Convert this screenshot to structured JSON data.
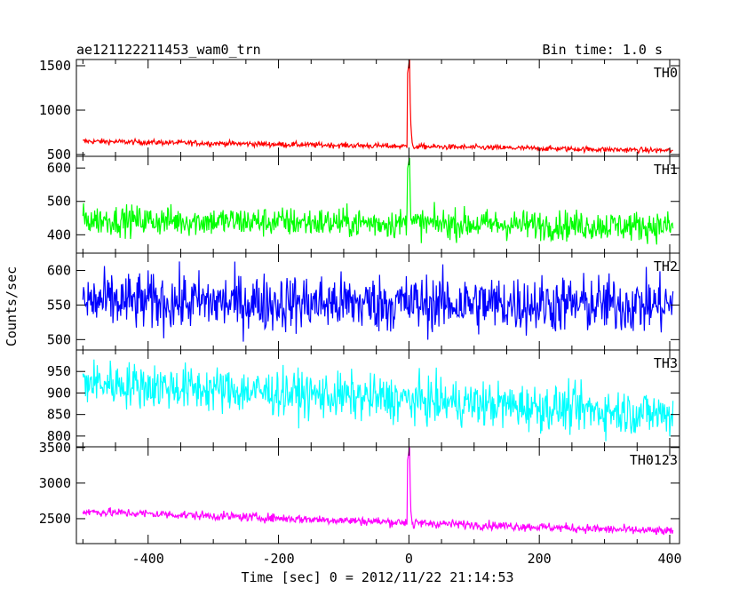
{
  "chart_data": {
    "type": "line",
    "title": "ae121122211453_wam0_trn",
    "subtitle": "Bin time: 1.0 s",
    "xlabel": "Time [sec] 0 = 2012/11/22 21:14:53",
    "ylabel": "Counts/sec",
    "xlim": [
      -510,
      415
    ],
    "x_ticks": [
      -400,
      -200,
      0,
      200,
      400
    ],
    "panels": [
      {
        "name": "TH0",
        "color": "#ff0000",
        "ylim": [
          480,
          1570
        ],
        "y_ticks": [
          500,
          1000,
          1500
        ],
        "baseline_start": 650,
        "baseline_end": 545,
        "noise": 22,
        "burst_peak": 1570,
        "burst_decay": 80
      },
      {
        "name": "TH1",
        "color": "#00ff00",
        "ylim": [
          345,
          635
        ],
        "y_ticks": [
          400,
          500,
          600
        ],
        "baseline_start": 445,
        "baseline_end": 425,
        "noise": 32,
        "burst_peak": 630,
        "burst_decay": 30
      },
      {
        "name": "TH2",
        "color": "#0000ff",
        "ylim": [
          485,
          625
        ],
        "y_ticks": [
          500,
          550,
          600
        ],
        "baseline_start": 555,
        "baseline_end": 550,
        "noise": 30,
        "burst_peak": 555,
        "burst_decay": 0
      },
      {
        "name": "TH3",
        "color": "#00ffff",
        "ylim": [
          775,
          1000
        ],
        "y_ticks": [
          800,
          850,
          900,
          950
        ],
        "baseline_start": 925,
        "baseline_end": 850,
        "noise": 38,
        "burst_peak": 850,
        "burst_decay": 0
      },
      {
        "name": "TH0123",
        "color": "#ff00ff",
        "ylim": [
          2150,
          3510
        ],
        "y_ticks": [
          2500,
          3000,
          3500
        ],
        "baseline_start": 2600,
        "baseline_end": 2320,
        "noise": 45,
        "burst_peak": 3500,
        "burst_decay": 250
      }
    ]
  }
}
